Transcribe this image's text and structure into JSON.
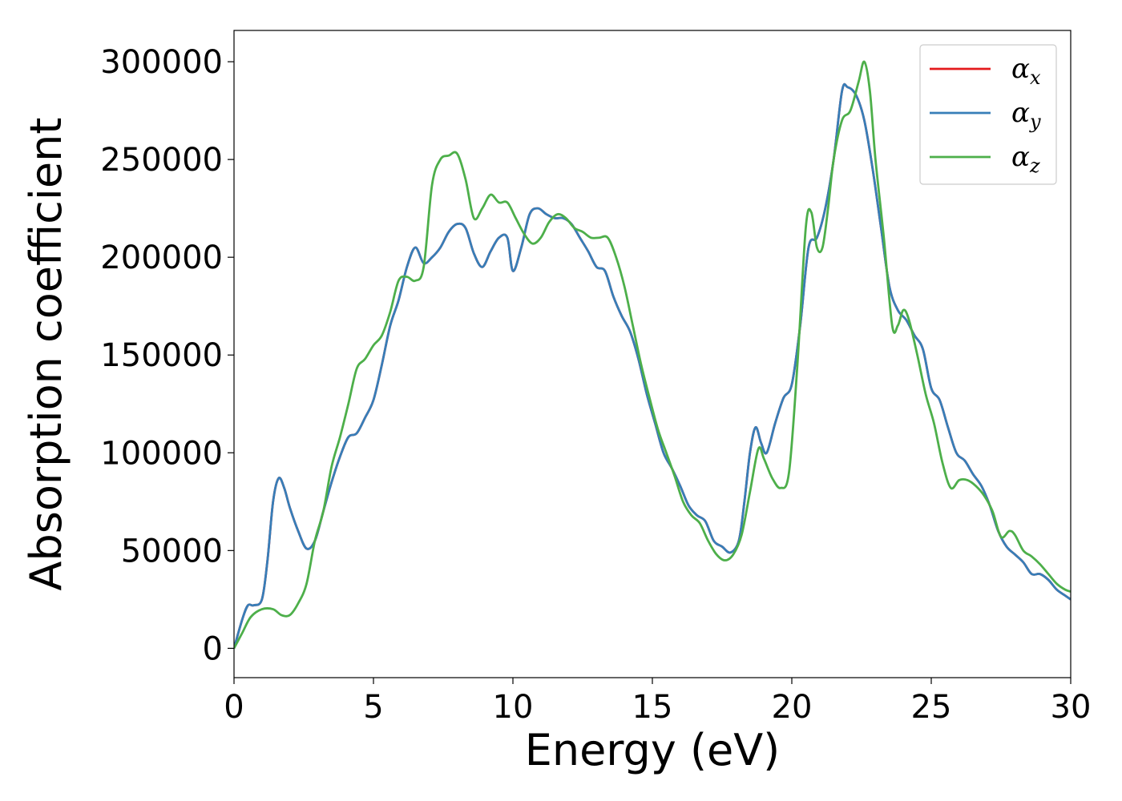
{
  "chart_data": {
    "type": "line",
    "xlabel": "Energy (eV)",
    "ylabel": "Absorption coefficient",
    "xlim": [
      0,
      30
    ],
    "ylim": [
      -15000,
      316000
    ],
    "xticks": [
      0,
      5,
      10,
      15,
      20,
      25,
      30
    ],
    "yticks": [
      0,
      50000,
      100000,
      150000,
      200000,
      250000,
      300000
    ],
    "grid": false,
    "legend": {
      "placement": "top-right"
    },
    "series": [
      {
        "name": "αx",
        "symbol": "α",
        "subscript": "x",
        "color": "#e41a1c",
        "x": [
          0,
          0.3,
          0.5,
          0.7,
          1.0,
          1.2,
          1.4,
          1.6,
          1.8,
          2.0,
          2.3,
          2.6,
          2.9,
          3.2,
          3.5,
          3.8,
          4.1,
          4.4,
          4.7,
          5.0,
          5.3,
          5.6,
          5.9,
          6.2,
          6.5,
          6.8,
          7.1,
          7.4,
          7.7,
          8.0,
          8.3,
          8.6,
          8.9,
          9.2,
          9.5,
          9.8,
          10.0,
          10.3,
          10.6,
          10.9,
          11.2,
          11.5,
          11.8,
          12.1,
          12.4,
          12.7,
          13.0,
          13.3,
          13.6,
          13.9,
          14.2,
          14.5,
          14.8,
          15.1,
          15.4,
          15.7,
          16.0,
          16.3,
          16.6,
          16.9,
          17.2,
          17.5,
          17.8,
          18.1,
          18.3,
          18.5,
          18.7,
          18.9,
          19.1,
          19.4,
          19.7,
          20.0,
          20.3,
          20.6,
          20.9,
          21.2,
          21.5,
          21.8,
          22.0,
          22.3,
          22.6,
          22.9,
          23.2,
          23.5,
          23.8,
          24.1,
          24.4,
          24.7,
          25.0,
          25.3,
          25.6,
          25.9,
          26.2,
          26.5,
          26.8,
          27.1,
          27.4,
          27.7,
          28.0,
          28.3,
          28.6,
          28.9,
          29.2,
          29.5,
          29.8,
          30.0
        ],
        "y": [
          0,
          15000,
          22000,
          22000,
          25000,
          45000,
          75000,
          87000,
          82000,
          72000,
          60000,
          51000,
          55000,
          70000,
          85000,
          98000,
          108000,
          110000,
          118000,
          127000,
          145000,
          165000,
          178000,
          195000,
          205000,
          197000,
          200000,
          205000,
          213000,
          217000,
          215000,
          202000,
          195000,
          203000,
          210000,
          210000,
          193000,
          205000,
          222000,
          225000,
          222000,
          220000,
          220000,
          217000,
          210000,
          203000,
          195000,
          193000,
          180000,
          170000,
          162000,
          148000,
          130000,
          115000,
          100000,
          92000,
          83000,
          73000,
          68000,
          65000,
          55000,
          52000,
          49000,
          55000,
          75000,
          100000,
          113000,
          105000,
          100000,
          115000,
          128000,
          135000,
          165000,
          205000,
          210000,
          225000,
          250000,
          285000,
          287000,
          283000,
          270000,
          245000,
          215000,
          185000,
          173000,
          168000,
          160000,
          153000,
          133000,
          127000,
          113000,
          100000,
          96000,
          89000,
          83000,
          73000,
          60000,
          52000,
          48000,
          44000,
          38000,
          38000,
          35000,
          30000,
          27000,
          25000
        ]
      },
      {
        "name": "αy",
        "symbol": "α",
        "subscript": "y",
        "color": "#377eb8",
        "x": [
          0,
          0.3,
          0.5,
          0.7,
          1.0,
          1.2,
          1.4,
          1.6,
          1.8,
          2.0,
          2.3,
          2.6,
          2.9,
          3.2,
          3.5,
          3.8,
          4.1,
          4.4,
          4.7,
          5.0,
          5.3,
          5.6,
          5.9,
          6.2,
          6.5,
          6.8,
          7.1,
          7.4,
          7.7,
          8.0,
          8.3,
          8.6,
          8.9,
          9.2,
          9.5,
          9.8,
          10.0,
          10.3,
          10.6,
          10.9,
          11.2,
          11.5,
          11.8,
          12.1,
          12.4,
          12.7,
          13.0,
          13.3,
          13.6,
          13.9,
          14.2,
          14.5,
          14.8,
          15.1,
          15.4,
          15.7,
          16.0,
          16.3,
          16.6,
          16.9,
          17.2,
          17.5,
          17.8,
          18.1,
          18.3,
          18.5,
          18.7,
          18.9,
          19.1,
          19.4,
          19.7,
          20.0,
          20.3,
          20.6,
          20.9,
          21.2,
          21.5,
          21.8,
          22.0,
          22.3,
          22.6,
          22.9,
          23.2,
          23.5,
          23.8,
          24.1,
          24.4,
          24.7,
          25.0,
          25.3,
          25.6,
          25.9,
          26.2,
          26.5,
          26.8,
          27.1,
          27.4,
          27.7,
          28.0,
          28.3,
          28.6,
          28.9,
          29.2,
          29.5,
          29.8,
          30.0
        ],
        "y": [
          0,
          15000,
          22000,
          22000,
          25000,
          45000,
          75000,
          87000,
          82000,
          72000,
          60000,
          51000,
          55000,
          70000,
          85000,
          98000,
          108000,
          110000,
          118000,
          127000,
          145000,
          165000,
          178000,
          195000,
          205000,
          197000,
          200000,
          205000,
          213000,
          217000,
          215000,
          202000,
          195000,
          203000,
          210000,
          210000,
          193000,
          205000,
          222000,
          225000,
          222000,
          220000,
          220000,
          217000,
          210000,
          203000,
          195000,
          193000,
          180000,
          170000,
          162000,
          148000,
          130000,
          115000,
          100000,
          92000,
          83000,
          73000,
          68000,
          65000,
          55000,
          52000,
          49000,
          55000,
          75000,
          100000,
          113000,
          105000,
          100000,
          115000,
          128000,
          135000,
          165000,
          205000,
          210000,
          225000,
          250000,
          285000,
          287000,
          283000,
          270000,
          245000,
          215000,
          185000,
          173000,
          168000,
          160000,
          153000,
          133000,
          127000,
          113000,
          100000,
          96000,
          89000,
          83000,
          73000,
          60000,
          52000,
          48000,
          44000,
          38000,
          38000,
          35000,
          30000,
          27000,
          25000
        ]
      },
      {
        "name": "αz",
        "symbol": "α",
        "subscript": "z",
        "color": "#4daf4a",
        "x": [
          0,
          0.3,
          0.6,
          1.0,
          1.4,
          1.7,
          2.0,
          2.3,
          2.6,
          2.9,
          3.2,
          3.5,
          3.8,
          4.1,
          4.4,
          4.7,
          5.0,
          5.3,
          5.6,
          5.9,
          6.2,
          6.5,
          6.8,
          7.1,
          7.4,
          7.7,
          8.0,
          8.3,
          8.6,
          8.9,
          9.2,
          9.5,
          9.8,
          10.1,
          10.4,
          10.7,
          11.0,
          11.3,
          11.6,
          11.9,
          12.2,
          12.5,
          12.8,
          13.1,
          13.4,
          13.7,
          14.0,
          14.3,
          14.6,
          14.9,
          15.2,
          15.5,
          15.8,
          16.1,
          16.4,
          16.7,
          17.0,
          17.3,
          17.6,
          17.9,
          18.2,
          18.5,
          18.8,
          19.0,
          19.3,
          19.6,
          19.9,
          20.2,
          20.5,
          20.7,
          20.9,
          21.1,
          21.3,
          21.5,
          21.8,
          22.1,
          22.4,
          22.6,
          22.8,
          23.0,
          23.3,
          23.6,
          23.8,
          24.0,
          24.2,
          24.5,
          24.8,
          25.1,
          25.4,
          25.7,
          26.0,
          26.3,
          26.6,
          26.9,
          27.2,
          27.5,
          27.8,
          28.0,
          28.3,
          28.6,
          28.9,
          29.2,
          29.5,
          29.8,
          30.0
        ],
        "y": [
          0,
          8000,
          16000,
          20000,
          20000,
          17000,
          17000,
          23000,
          33000,
          55000,
          70000,
          93000,
          108000,
          125000,
          143000,
          148000,
          155000,
          160000,
          172000,
          188000,
          190000,
          188000,
          195000,
          237000,
          250000,
          252000,
          253000,
          240000,
          220000,
          225000,
          232000,
          228000,
          228000,
          220000,
          212000,
          207000,
          210000,
          218000,
          222000,
          220000,
          215000,
          213000,
          210000,
          210000,
          210000,
          200000,
          185000,
          165000,
          145000,
          128000,
          112000,
          100000,
          88000,
          75000,
          68000,
          64000,
          55000,
          48000,
          45000,
          48000,
          58000,
          80000,
          102000,
          97000,
          87000,
          82000,
          90000,
          145000,
          215000,
          223000,
          205000,
          205000,
          225000,
          250000,
          270000,
          275000,
          290000,
          300000,
          285000,
          250000,
          210000,
          165000,
          165000,
          173000,
          168000,
          150000,
          130000,
          115000,
          95000,
          82000,
          86000,
          86000,
          83000,
          78000,
          70000,
          57000,
          60000,
          58000,
          50000,
          47000,
          43000,
          38000,
          33000,
          30000,
          29000
        ]
      }
    ]
  }
}
